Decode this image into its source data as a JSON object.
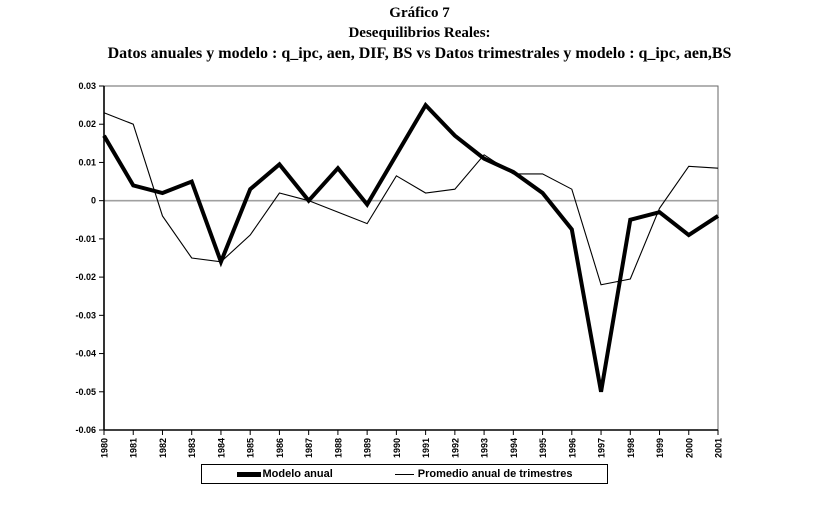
{
  "title": {
    "line1": "Gráfico 7",
    "line2": "Desequilibrios Reales:",
    "line3": "Datos anuales y modelo : q_ipc, aen, DIF, BS  vs Datos trimestrales y modelo : q_ipc, aen,BS"
  },
  "chart_data": {
    "type": "line",
    "x": [
      1980,
      1981,
      1982,
      1983,
      1984,
      1985,
      1986,
      1987,
      1988,
      1989,
      1990,
      1991,
      1992,
      1993,
      1994,
      1995,
      1996,
      1997,
      1998,
      1999,
      2000,
      2001
    ],
    "series": [
      {
        "name": "Modelo anual",
        "style": "thick",
        "values": [
          0.017,
          0.004,
          0.002,
          0.005,
          -0.016,
          0.003,
          0.0095,
          0.0,
          0.0085,
          -0.001,
          0.012,
          0.025,
          0.017,
          0.011,
          0.0075,
          0.002,
          -0.0075,
          -0.05,
          -0.005,
          -0.003,
          -0.009,
          -0.004
        ]
      },
      {
        "name": "Promedio anual de trimestres",
        "style": "thin",
        "values": [
          0.023,
          0.02,
          -0.004,
          -0.015,
          -0.016,
          -0.009,
          0.002,
          0.0,
          -0.003,
          -0.006,
          0.0065,
          0.002,
          0.003,
          0.012,
          0.007,
          0.007,
          0.003,
          -0.022,
          -0.0205,
          -0.002,
          0.009,
          0.0085
        ]
      }
    ],
    "title": "Gráfico 7 — Desequilibrios Reales",
    "xlabel": "",
    "ylabel": "",
    "ylim": [
      -0.06,
      0.03
    ],
    "ytick_step": 0.01,
    "ytick_labels": [
      "0.03",
      "0.02",
      "0.01",
      "0",
      "-0.01",
      "-0.02",
      "-0.03",
      "-0.04",
      "-0.05",
      "-0.06"
    ],
    "grid": "zero-line-only",
    "legend_position": "bottom-center",
    "colors": {
      "line": "#000000",
      "zero_line": "#a0a0a0",
      "border": "#666666"
    }
  },
  "legend": {
    "items": [
      {
        "label": "Modelo anual",
        "swatch": "thick-line"
      },
      {
        "label": "Promedio anual de trimestres",
        "swatch": "thin-line"
      }
    ]
  }
}
